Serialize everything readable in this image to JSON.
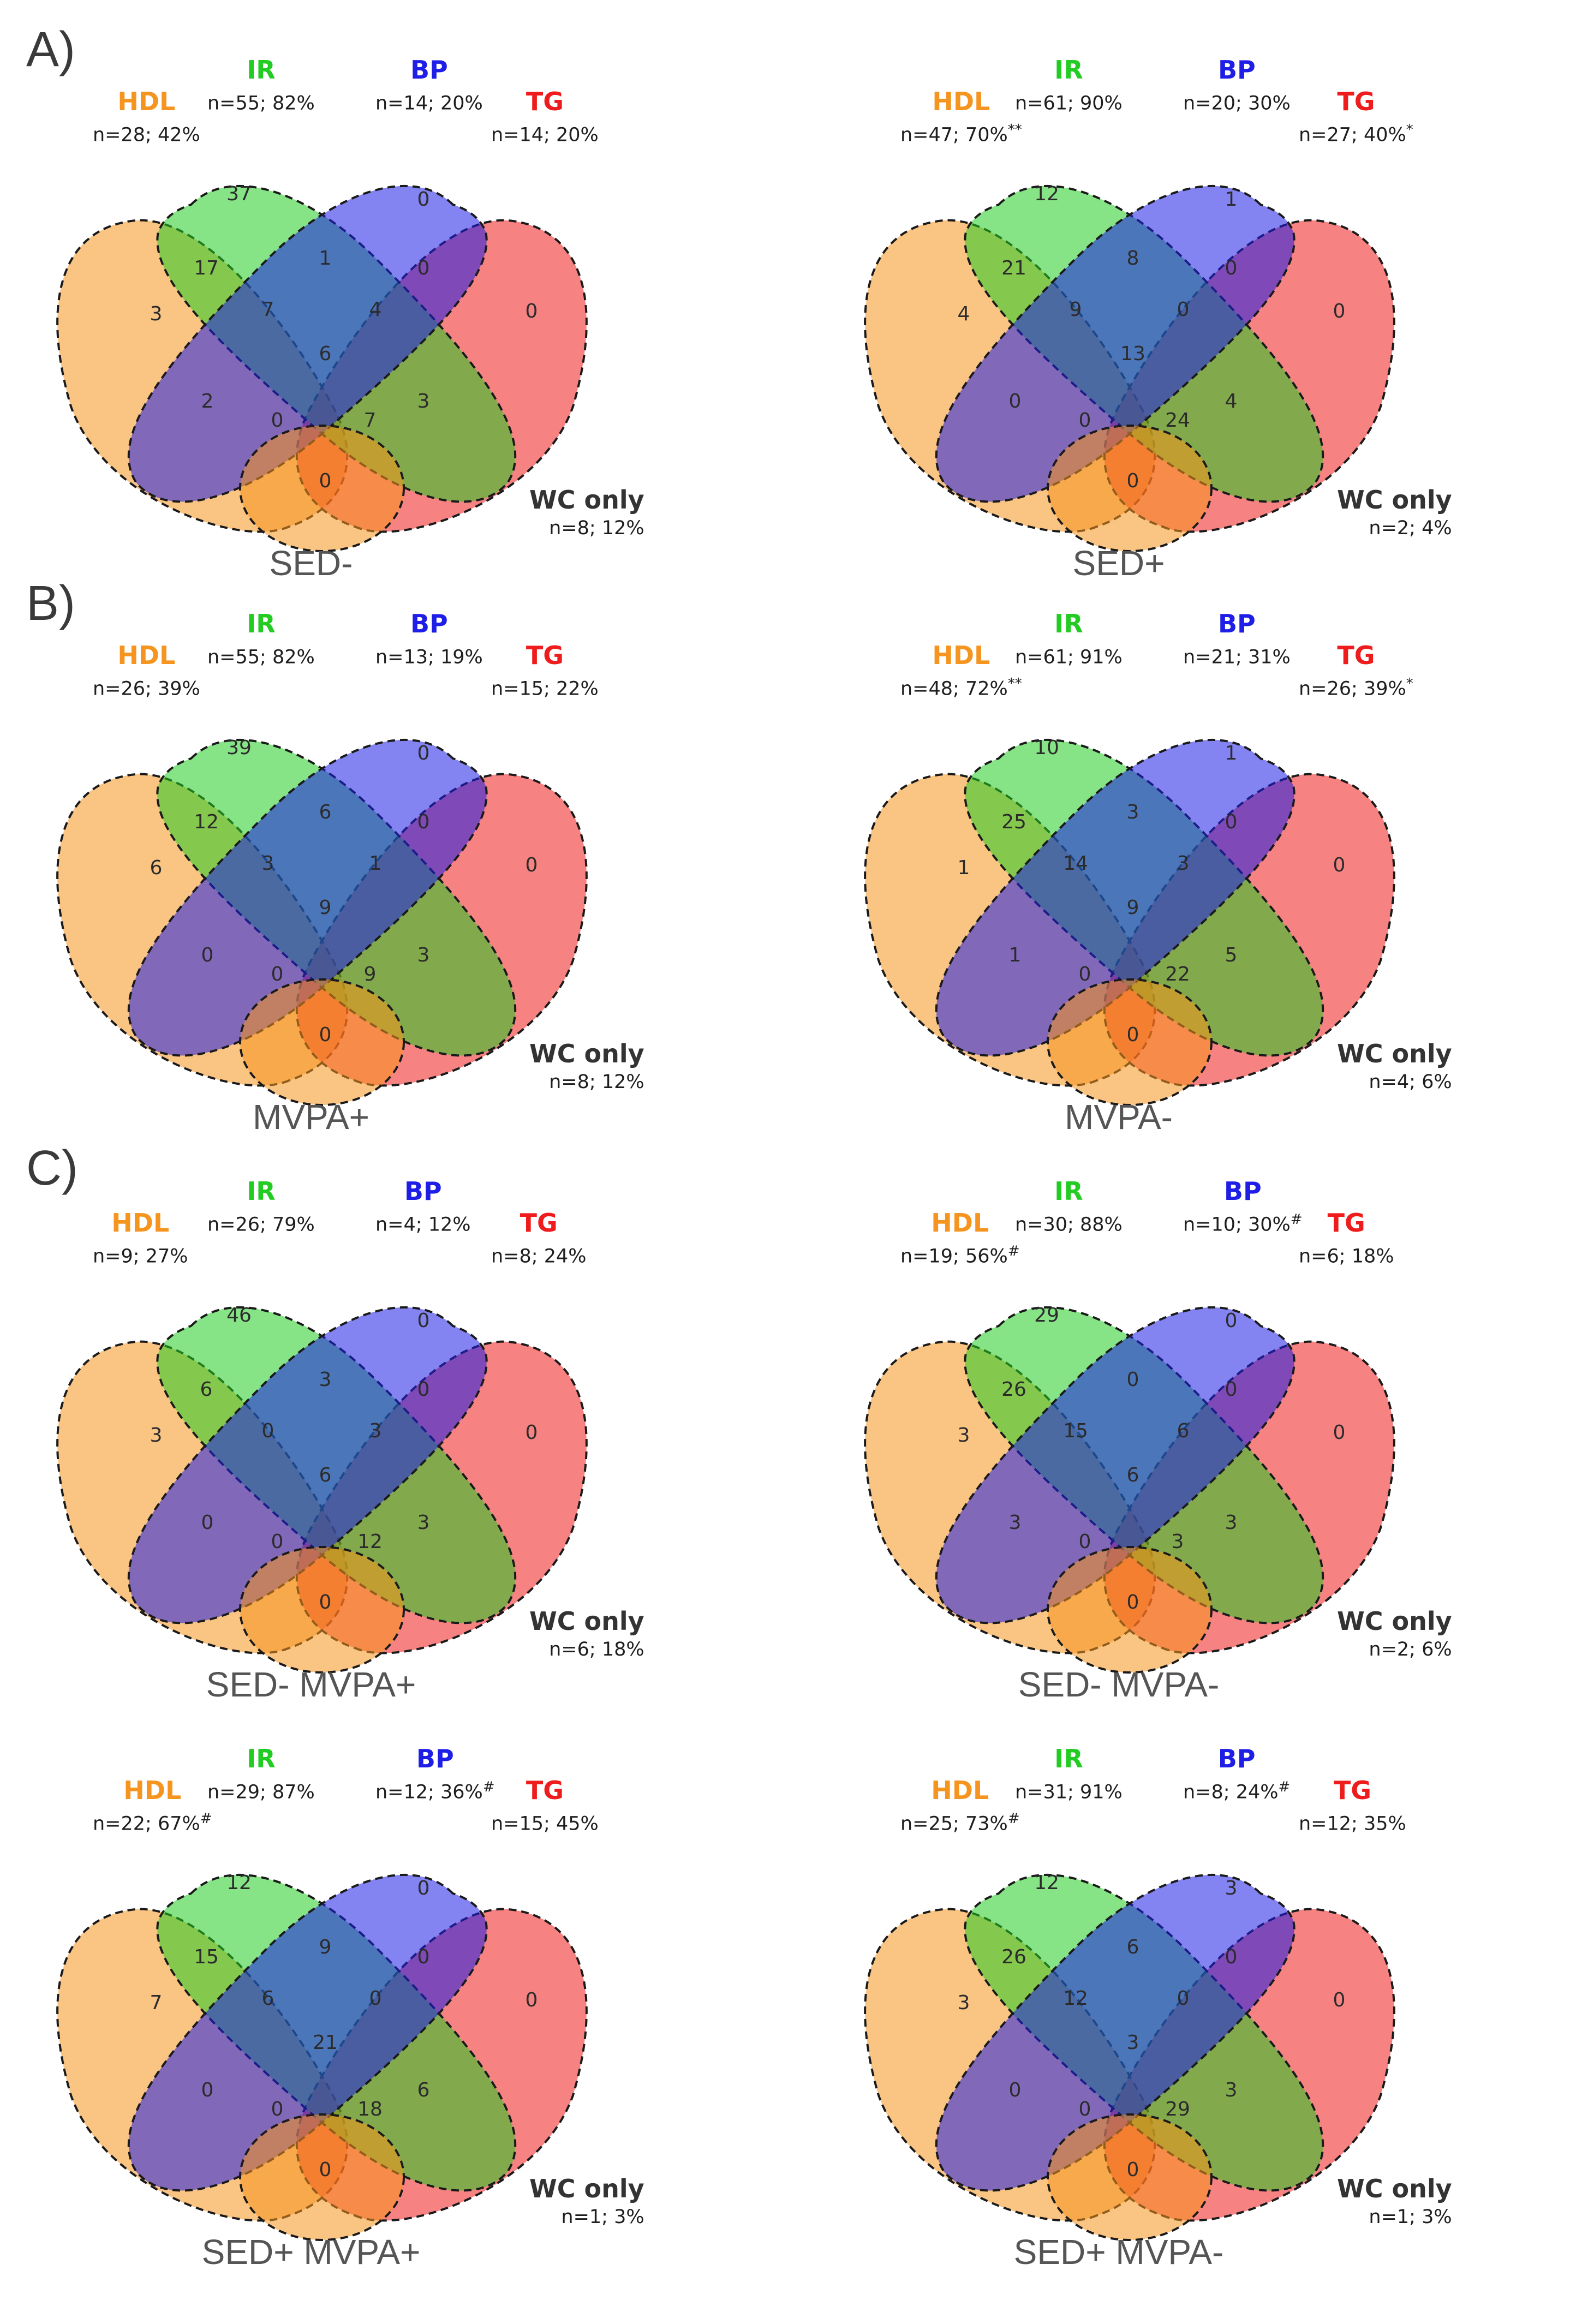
{
  "colors": {
    "hdl": "#f5941e",
    "ir": "#22cc22",
    "bp": "#1e1ee6",
    "tg": "#ee1c1c",
    "wc": "#333333"
  },
  "sections": [
    {
      "label": "A)"
    },
    {
      "label": "B)"
    },
    {
      "label": "C)"
    }
  ],
  "panels": [
    {
      "caption": "SED-",
      "hdl": {
        "name": "HDL",
        "count": "n=28; 42%",
        "sup": ""
      },
      "ir": {
        "name": "IR",
        "count": "n=55; 82%",
        "sup": ""
      },
      "bp": {
        "name": "BP",
        "count": "n=14; 20%",
        "sup": ""
      },
      "tg": {
        "name": "TG",
        "count": "n=14; 20%",
        "sup": ""
      },
      "wc": {
        "name": "WC only",
        "count": "n=8; 12%"
      },
      "regions": {
        "ir_only": "37",
        "bp_only": "0",
        "hdl_only": "3",
        "tg_only": "0",
        "hdl_ir": "17",
        "ir_bp": "1",
        "bp_tg": "0",
        "hdl_ir_bp": "7",
        "ir_bp_tg": "4",
        "all": "6",
        "hdl_bp": "2",
        "ir_tg": "3",
        "hdl_bp_tg": "0",
        "hdl_ir_tg": "7",
        "hdl_tg": "0"
      }
    },
    {
      "caption": "SED+",
      "hdl": {
        "name": "HDL",
        "count": "n=47; 70%",
        "sup": "**"
      },
      "ir": {
        "name": "IR",
        "count": "n=61; 90%",
        "sup": ""
      },
      "bp": {
        "name": "BP",
        "count": "n=20; 30%",
        "sup": ""
      },
      "tg": {
        "name": "TG",
        "count": "n=27; 40%",
        "sup": "*"
      },
      "wc": {
        "name": "WC only",
        "count": "n=2; 4%"
      },
      "regions": {
        "ir_only": "12",
        "bp_only": "1",
        "hdl_only": "4",
        "tg_only": "0",
        "hdl_ir": "21",
        "ir_bp": "8",
        "bp_tg": "0",
        "hdl_ir_bp": "9",
        "ir_bp_tg": "0",
        "all": "13",
        "hdl_bp": "0",
        "ir_tg": "4",
        "hdl_bp_tg": "0",
        "hdl_ir_tg": "24",
        "hdl_tg": "0"
      }
    },
    {
      "caption": "MVPA+",
      "hdl": {
        "name": "HDL",
        "count": "n=26; 39%",
        "sup": ""
      },
      "ir": {
        "name": "IR",
        "count": "n=55; 82%",
        "sup": ""
      },
      "bp": {
        "name": "BP",
        "count": "n=13; 19%",
        "sup": ""
      },
      "tg": {
        "name": "TG",
        "count": "n=15; 22%",
        "sup": ""
      },
      "wc": {
        "name": "WC only",
        "count": "n=8; 12%"
      },
      "regions": {
        "ir_only": "39",
        "bp_only": "0",
        "hdl_only": "6",
        "tg_only": "0",
        "hdl_ir": "12",
        "ir_bp": "6",
        "bp_tg": "0",
        "hdl_ir_bp": "3",
        "ir_bp_tg": "1",
        "all": "9",
        "hdl_bp": "0",
        "ir_tg": "3",
        "hdl_bp_tg": "0",
        "hdl_ir_tg": "9",
        "hdl_tg": "0"
      }
    },
    {
      "caption": "MVPA-",
      "hdl": {
        "name": "HDL",
        "count": "n=48; 72%",
        "sup": "**"
      },
      "ir": {
        "name": "IR",
        "count": "n=61; 91%",
        "sup": ""
      },
      "bp": {
        "name": "BP",
        "count": "n=21; 31%",
        "sup": ""
      },
      "tg": {
        "name": "TG",
        "count": "n=26; 39%",
        "sup": "*"
      },
      "wc": {
        "name": "WC only",
        "count": "n=4; 6%"
      },
      "regions": {
        "ir_only": "10",
        "bp_only": "1",
        "hdl_only": "1",
        "tg_only": "0",
        "hdl_ir": "25",
        "ir_bp": "3",
        "bp_tg": "0",
        "hdl_ir_bp": "14",
        "ir_bp_tg": "3",
        "all": "9",
        "hdl_bp": "1",
        "ir_tg": "5",
        "hdl_bp_tg": "0",
        "hdl_ir_tg": "22",
        "hdl_tg": "0"
      }
    },
    {
      "caption": "SED- MVPA+",
      "hdl": {
        "name": "HDL",
        "count": "n=9; 27%",
        "sup": ""
      },
      "ir": {
        "name": "IR",
        "count": "n=26; 79%",
        "sup": ""
      },
      "bp": {
        "name": "BP",
        "count": "n=4; 12%",
        "sup": ""
      },
      "tg": {
        "name": "TG",
        "count": "n=8; 24%",
        "sup": ""
      },
      "wc": {
        "name": "WC only",
        "count": "n=6; 18%"
      },
      "regions": {
        "ir_only": "46",
        "bp_only": "0",
        "hdl_only": "3",
        "tg_only": "0",
        "hdl_ir": "6",
        "ir_bp": "3",
        "bp_tg": "0",
        "hdl_ir_bp": "0",
        "ir_bp_tg": "3",
        "all": "6",
        "hdl_bp": "0",
        "ir_tg": "3",
        "hdl_bp_tg": "0",
        "hdl_ir_tg": "12",
        "hdl_tg": "0"
      }
    },
    {
      "caption": "SED- MVPA-",
      "hdl": {
        "name": "HDL",
        "count": "n=19; 56%",
        "sup": "#"
      },
      "ir": {
        "name": "IR",
        "count": "n=30; 88%",
        "sup": ""
      },
      "bp": {
        "name": "BP",
        "count": "n=10; 30%",
        "sup": "#"
      },
      "tg": {
        "name": "TG",
        "count": "n=6; 18%",
        "sup": ""
      },
      "wc": {
        "name": "WC only",
        "count": "n=2; 6%"
      },
      "regions": {
        "ir_only": "29",
        "bp_only": "0",
        "hdl_only": "3",
        "tg_only": "0",
        "hdl_ir": "26",
        "ir_bp": "0",
        "bp_tg": "0",
        "hdl_ir_bp": "15",
        "ir_bp_tg": "6",
        "all": "6",
        "hdl_bp": "3",
        "ir_tg": "3",
        "hdl_bp_tg": "0",
        "hdl_ir_tg": "3",
        "hdl_tg": "0"
      }
    },
    {
      "caption": "SED+ MVPA+",
      "hdl": {
        "name": "HDL",
        "count": "n=22; 67%",
        "sup": "#"
      },
      "ir": {
        "name": "IR",
        "count": "n=29; 87%",
        "sup": ""
      },
      "bp": {
        "name": "BP",
        "count": "n=12; 36%",
        "sup": "#"
      },
      "tg": {
        "name": "TG",
        "count": "n=15; 45%",
        "sup": ""
      },
      "wc": {
        "name": "WC only",
        "count": "n=1; 3%"
      },
      "regions": {
        "ir_only": "12",
        "bp_only": "0",
        "hdl_only": "7",
        "tg_only": "0",
        "hdl_ir": "15",
        "ir_bp": "9",
        "bp_tg": "0",
        "hdl_ir_bp": "6",
        "ir_bp_tg": "0",
        "all": "21",
        "hdl_bp": "0",
        "ir_tg": "6",
        "hdl_bp_tg": "0",
        "hdl_ir_tg": "18",
        "hdl_tg": "0"
      }
    },
    {
      "caption": "SED+ MVPA-",
      "hdl": {
        "name": "HDL",
        "count": "n=25; 73%",
        "sup": "#"
      },
      "ir": {
        "name": "IR",
        "count": "n=31; 91%",
        "sup": ""
      },
      "bp": {
        "name": "BP",
        "count": "n=8; 24%",
        "sup": "#"
      },
      "tg": {
        "name": "TG",
        "count": "n=12; 35%",
        "sup": ""
      },
      "wc": {
        "name": "WC only",
        "count": "n=1; 3%"
      },
      "regions": {
        "ir_only": "12",
        "bp_only": "3",
        "hdl_only": "3",
        "tg_only": "0",
        "hdl_ir": "26",
        "ir_bp": "6",
        "bp_tg": "0",
        "hdl_ir_bp": "12",
        "ir_bp_tg": "0",
        "all": "3",
        "hdl_bp": "0",
        "ir_tg": "3",
        "hdl_bp_tg": "0",
        "hdl_ir_tg": "29",
        "hdl_tg": "0"
      }
    }
  ]
}
